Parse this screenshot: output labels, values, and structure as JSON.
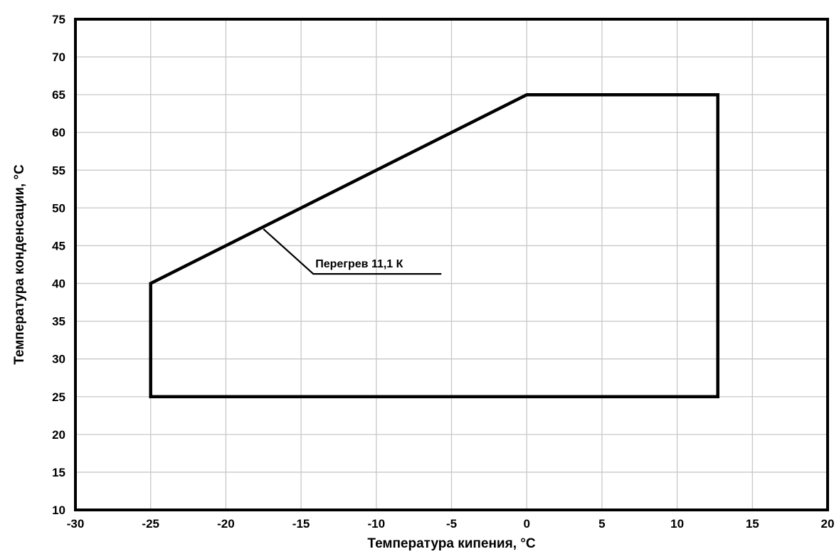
{
  "chart_data": {
    "type": "line",
    "title": "",
    "xlabel": "Температура кипения, °С",
    "ylabel": "Температура конденсации, °С",
    "xlim": [
      -30,
      20
    ],
    "ylim": [
      10,
      75
    ],
    "xticks": [
      -30,
      -25,
      -20,
      -15,
      -10,
      -5,
      0,
      5,
      10,
      15,
      20
    ],
    "yticks": [
      10,
      15,
      20,
      25,
      30,
      35,
      40,
      45,
      50,
      55,
      60,
      65,
      70,
      75
    ],
    "grid": true,
    "series": [
      {
        "closed": true,
        "color": "#000000",
        "points": [
          {
            "x": -25,
            "y": 25
          },
          {
            "x": -25,
            "y": 40
          },
          {
            "x": 0,
            "y": 65
          },
          {
            "x": 12.7,
            "y": 65
          },
          {
            "x": 12.7,
            "y": 25
          }
        ]
      }
    ],
    "annotations": [
      {
        "text": "Перегрев 11,1 К",
        "x": -17.5,
        "y": 47.2
      }
    ]
  }
}
